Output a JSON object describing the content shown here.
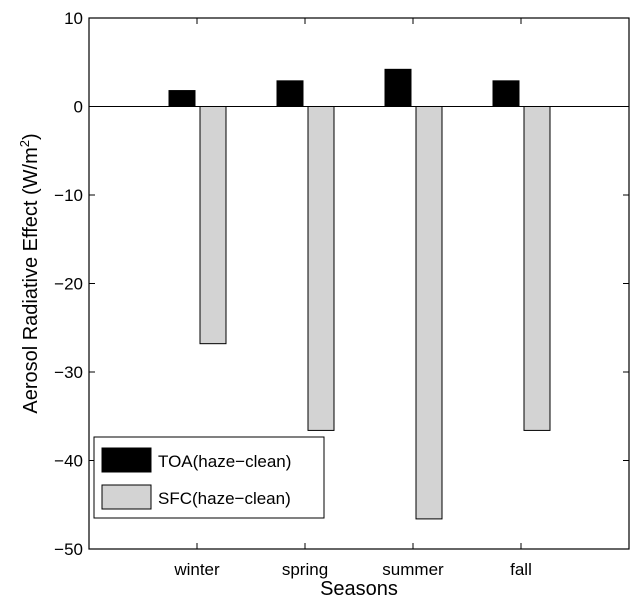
{
  "chart_data": {
    "type": "bar",
    "title": "",
    "xlabel": "Seasons",
    "ylabel": "Aerosol Radiative Effect (W/m",
    "ylabel_superscript": "2",
    "ylabel_suffix": ")",
    "categories": [
      "winter",
      "spring",
      "summer",
      "fall"
    ],
    "series": [
      {
        "name": "TOA(haze−clean)",
        "values": [
          1.8,
          2.9,
          4.2,
          2.9
        ],
        "color": "#000000"
      },
      {
        "name": "SFC(haze−clean)",
        "values": [
          -26.8,
          -36.6,
          -46.6,
          -36.6
        ],
        "color": "#d3d3d3"
      }
    ],
    "ylim": [
      -50,
      10
    ],
    "yticks": [
      10,
      0,
      -10,
      -20,
      -30,
      -40,
      -50
    ],
    "ytick_labels": [
      "10",
      "0",
      "−10",
      "−20",
      "−30",
      "−40",
      "−50"
    ],
    "grid": false,
    "legend_position": "bottom-left"
  }
}
